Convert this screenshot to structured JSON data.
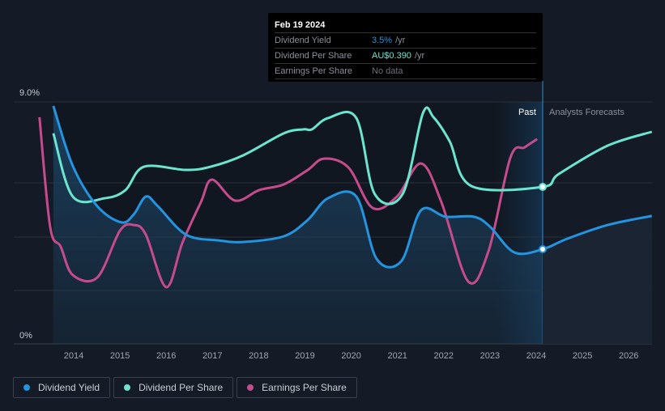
{
  "tooltip": {
    "date": "Feb 19 2024",
    "rows": [
      {
        "label": "Dividend Yield",
        "value": "3.5%",
        "unit": "/yr",
        "color": "#2394df"
      },
      {
        "label": "Dividend Per Share",
        "value": "AU$0.390",
        "unit": "/yr",
        "color": "#6be4d0"
      },
      {
        "label": "Earnings Per Share",
        "value": "No data",
        "unit": "",
        "color": "#6b7079"
      }
    ]
  },
  "legend": [
    {
      "label": "Dividend Yield",
      "color": "#2394df"
    },
    {
      "label": "Dividend Per Share",
      "color": "#6be4d0"
    },
    {
      "label": "Earnings Per Share",
      "color": "#c64b8c"
    }
  ],
  "chart_data": {
    "type": "line",
    "y_top_label": "9.0%",
    "y_bottom_label": "0%",
    "ylim": [
      0,
      9
    ],
    "xlim": [
      2012.7,
      2026.5
    ],
    "x_ticks": [
      "2014",
      "2015",
      "2016",
      "2017",
      "2018",
      "2019",
      "2020",
      "2021",
      "2022",
      "2023",
      "2024",
      "2025",
      "2026"
    ],
    "past_label": "Past",
    "forecast_label": "Analysts Forecasts",
    "forecast_start": 2024.14,
    "series": [
      {
        "name": "Dividend Yield",
        "color": "#2394df",
        "points": [
          [
            2013.56,
            8.85
          ],
          [
            2013.98,
            6.62
          ],
          [
            2014.51,
            5.12
          ],
          [
            2015.03,
            4.52
          ],
          [
            2015.3,
            4.82
          ],
          [
            2015.56,
            5.48
          ],
          [
            2015.82,
            5.12
          ],
          [
            2016.43,
            4.06
          ],
          [
            2017.13,
            3.85
          ],
          [
            2017.66,
            3.79
          ],
          [
            2018.54,
            4.0
          ],
          [
            2019.06,
            4.61
          ],
          [
            2019.5,
            5.42
          ],
          [
            2020.11,
            5.48
          ],
          [
            2020.55,
            3.16
          ],
          [
            2021.08,
            3.07
          ],
          [
            2021.51,
            4.97
          ],
          [
            2022.04,
            4.73
          ],
          [
            2022.65,
            4.73
          ],
          [
            2023.0,
            4.36
          ],
          [
            2023.53,
            3.4
          ],
          [
            2024.14,
            3.52
          ],
          [
            2024.67,
            3.91
          ],
          [
            2025.54,
            4.42
          ],
          [
            2026.5,
            4.76
          ]
        ]
      },
      {
        "name": "Dividend Per Share",
        "color": "#6be4d0",
        "points": [
          [
            2013.56,
            7.83
          ],
          [
            2013.98,
            5.48
          ],
          [
            2014.68,
            5.42
          ],
          [
            2015.12,
            5.72
          ],
          [
            2015.52,
            6.59
          ],
          [
            2016.43,
            6.47
          ],
          [
            2016.96,
            6.59
          ],
          [
            2017.66,
            7.01
          ],
          [
            2018.54,
            7.83
          ],
          [
            2018.97,
            7.98
          ],
          [
            2019.15,
            7.98
          ],
          [
            2019.5,
            8.4
          ],
          [
            2020.11,
            8.4
          ],
          [
            2020.51,
            5.57
          ],
          [
            2021.11,
            5.57
          ],
          [
            2021.55,
            8.58
          ],
          [
            2021.78,
            8.43
          ],
          [
            2022.13,
            7.53
          ],
          [
            2022.6,
            5.87
          ],
          [
            2024.14,
            5.84
          ],
          [
            2024.49,
            6.32
          ],
          [
            2025.54,
            7.37
          ],
          [
            2026.5,
            7.89
          ]
        ]
      },
      {
        "name": "Earnings Per Share",
        "color": "#c64b8c",
        "points": [
          [
            2013.26,
            8.43
          ],
          [
            2013.49,
            4.36
          ],
          [
            2013.72,
            3.61
          ],
          [
            2013.98,
            2.56
          ],
          [
            2014.51,
            2.47
          ],
          [
            2015.0,
            4.21
          ],
          [
            2015.3,
            4.42
          ],
          [
            2015.56,
            4.06
          ],
          [
            2016.0,
            2.11
          ],
          [
            2016.35,
            3.76
          ],
          [
            2016.75,
            5.27
          ],
          [
            2016.99,
            6.11
          ],
          [
            2017.49,
            5.33
          ],
          [
            2018.01,
            5.72
          ],
          [
            2018.54,
            5.93
          ],
          [
            2019.06,
            6.47
          ],
          [
            2019.41,
            6.89
          ],
          [
            2019.94,
            6.56
          ],
          [
            2020.46,
            5.06
          ],
          [
            2020.99,
            5.48
          ],
          [
            2021.51,
            6.71
          ],
          [
            2021.95,
            5.27
          ],
          [
            2022.53,
            2.32
          ],
          [
            2022.97,
            3.46
          ],
          [
            2023.44,
            6.92
          ],
          [
            2023.75,
            7.31
          ],
          [
            2024.02,
            7.62
          ]
        ]
      }
    ]
  }
}
